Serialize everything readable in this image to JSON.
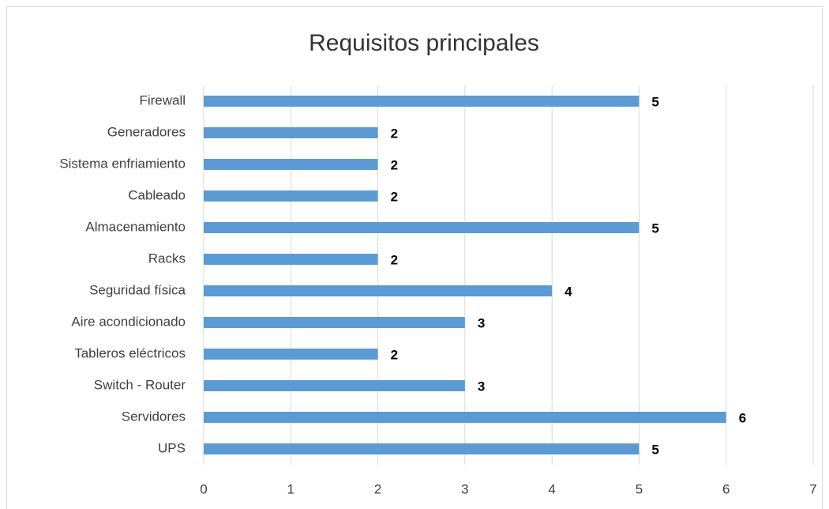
{
  "chart_data": {
    "type": "barh",
    "title": "Requisitos principales",
    "categories": [
      "Firewall",
      "Generadores",
      "Sistema enfriamiento",
      "Cableado",
      "Almacenamiento",
      "Racks",
      "Seguridad física",
      "Aire acondicionado",
      "Tableros eléctricos",
      "Switch - Router",
      "Servidores",
      "UPS"
    ],
    "values": [
      5,
      2,
      2,
      2,
      5,
      2,
      4,
      3,
      2,
      3,
      6,
      5
    ],
    "color": "#5b9bd5",
    "xlim": [
      0,
      7
    ],
    "xticks": [
      0,
      1,
      2,
      3,
      4,
      5,
      6,
      7
    ],
    "grid": true
  }
}
